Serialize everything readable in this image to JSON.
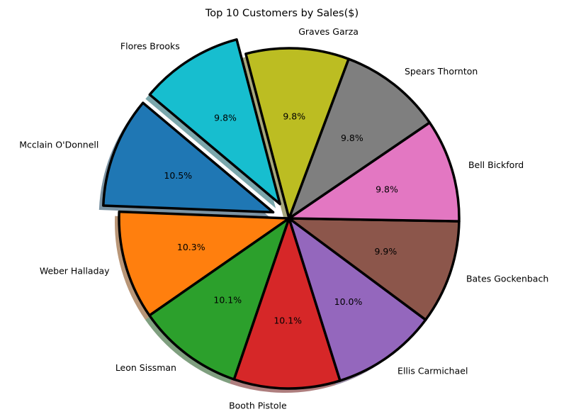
{
  "chart_data": {
    "type": "pie",
    "title": "Top 10 Customers by Sales($)",
    "labels": [
      "Mcclain O'Donnell",
      "Weber Halladay",
      "Leon Sissman",
      "Booth Pistole",
      "Ellis Carmichael",
      "Bates Gockenbach",
      "Bell Bickford",
      "Spears Thornton",
      "Graves Garza",
      "Flores Brooks"
    ],
    "values": [
      10.5,
      10.3,
      10.1,
      10.1,
      10.0,
      9.9,
      9.8,
      9.8,
      9.8,
      9.8
    ],
    "percent_labels": [
      "10.5%",
      "10.3%",
      "10.1%",
      "10.1%",
      "10.0%",
      "9.9%",
      "9.8%",
      "9.8%",
      "9.8%",
      "9.8%"
    ],
    "colors": [
      "#1f77b4",
      "#ff7f0e",
      "#2ca02c",
      "#d62728",
      "#9467bd",
      "#8c564b",
      "#e377c2",
      "#7f7f7f",
      "#bcbd22",
      "#17becf"
    ],
    "exploded": [
      true,
      false,
      false,
      false,
      false,
      false,
      false,
      false,
      false,
      true
    ],
    "start_angle_deg": 140,
    "direction": "counterclockwise",
    "shadow": true,
    "edge_color": "#000000"
  }
}
